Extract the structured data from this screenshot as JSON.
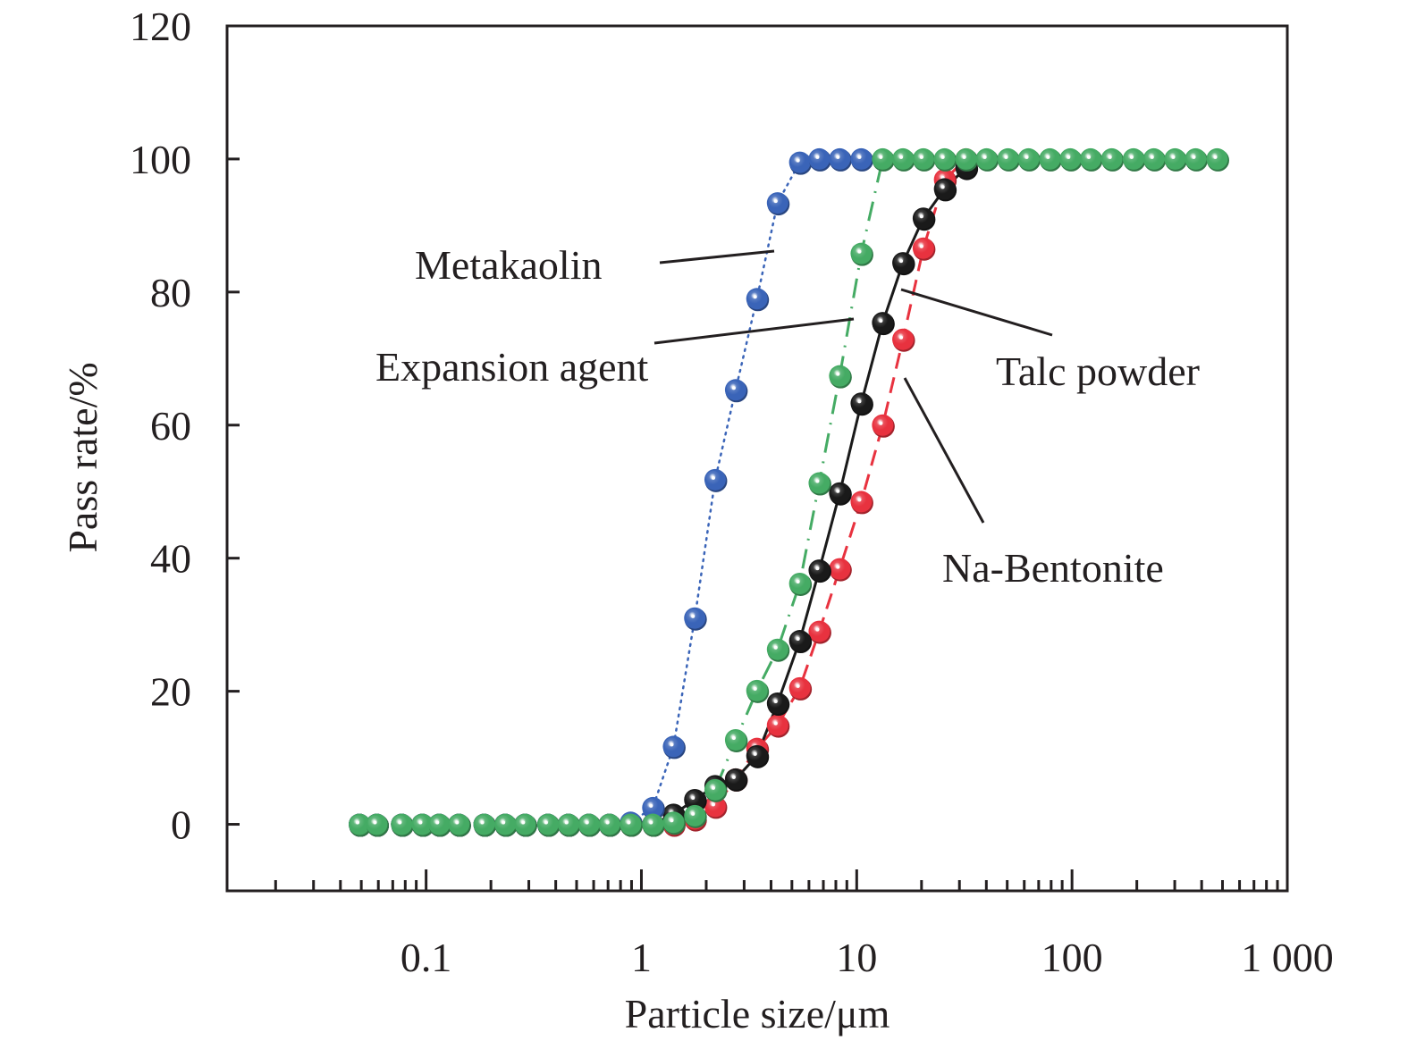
{
  "chart_data": {
    "type": "scatter",
    "title": "",
    "xlabel": "Particle size/μm",
    "ylabel": "Pass rate/%",
    "xscale": "log",
    "xlim": [
      0.0119,
      1000
    ],
    "ylim": [
      -10,
      120
    ],
    "grid": false,
    "legend": "none (inline annotations)",
    "x_ticks": [
      {
        "value": 0.1,
        "label": "0.1"
      },
      {
        "value": 1,
        "label": "1"
      },
      {
        "value": 10,
        "label": "10"
      },
      {
        "value": 100,
        "label": "100"
      },
      {
        "value": 1000,
        "label": "1 000"
      }
    ],
    "y_ticks": [
      {
        "value": 0,
        "label": "0"
      },
      {
        "value": 20,
        "label": "20"
      },
      {
        "value": 40,
        "label": "40"
      },
      {
        "value": 60,
        "label": "60"
      },
      {
        "value": 80,
        "label": "80"
      },
      {
        "value": 100,
        "label": "100"
      },
      {
        "value": 120,
        "label": "120"
      }
    ],
    "series": [
      {
        "name": "Na-Bentonite",
        "color": "#e8323f",
        "line": "dashed",
        "x": [
          0.049,
          0.059,
          0.077,
          0.096,
          0.115,
          0.142,
          0.186,
          0.233,
          0.288,
          0.368,
          0.458,
          0.57,
          0.71,
          0.891,
          1.13,
          1.41,
          1.77,
          2.2,
          2.74,
          3.44,
          4.29,
          5.44,
          6.7,
          8.34,
          10.5,
          13.2,
          16.4,
          20.4,
          25.6,
          32.2
        ],
        "y": [
          0,
          0,
          0,
          0,
          0,
          0,
          0,
          0,
          0,
          0,
          0,
          0,
          0,
          0,
          0,
          0,
          0.8,
          2.7,
          6.8,
          11.4,
          14.9,
          20.5,
          29.0,
          38.4,
          48.5,
          60.0,
          72.9,
          86.6,
          96.9,
          100
        ]
      },
      {
        "name": "Talc powder",
        "color": "#1a1a1a",
        "line": "solid",
        "x": [
          0.049,
          0.059,
          0.077,
          0.096,
          0.115,
          0.142,
          0.186,
          0.233,
          0.288,
          0.368,
          0.458,
          0.57,
          0.71,
          0.891,
          1.13,
          1.41,
          1.77,
          2.2,
          2.74,
          3.44,
          4.29,
          5.44,
          6.7,
          8.34,
          10.5,
          13.2,
          16.4,
          20.4,
          25.6,
          32.2
        ],
        "y": [
          0,
          0,
          0,
          0,
          0,
          0,
          0,
          0,
          0,
          0,
          0,
          0,
          0,
          0,
          0,
          1.5,
          3.7,
          5.8,
          6.8,
          10.3,
          18.2,
          27.6,
          38.2,
          49.8,
          63.3,
          75.4,
          84.4,
          91.1,
          95.5,
          98.7
        ]
      },
      {
        "name": "Metakaolin",
        "color": "#3a64b8",
        "line": "dotted",
        "x": [
          0.049,
          0.059,
          0.077,
          0.096,
          0.115,
          0.142,
          0.186,
          0.233,
          0.288,
          0.368,
          0.458,
          0.57,
          0.71,
          0.891,
          1.13,
          1.41,
          1.77,
          2.2,
          2.74,
          3.44,
          4.29,
          5.44,
          6.7,
          8.34,
          10.5
        ],
        "y": [
          0,
          0,
          0,
          0,
          0,
          0,
          0,
          0,
          0,
          0,
          0,
          0,
          0,
          0.3,
          2.5,
          11.7,
          31.0,
          51.8,
          65.3,
          79.0,
          93.4,
          99.5,
          100,
          100,
          100
        ]
      },
      {
        "name": "Expansion agent",
        "color": "#45ab64",
        "line": "dash-dot",
        "x": [
          0.049,
          0.059,
          0.077,
          0.096,
          0.115,
          0.142,
          0.186,
          0.233,
          0.288,
          0.368,
          0.458,
          0.57,
          0.71,
          0.891,
          1.13,
          1.41,
          1.77,
          2.2,
          2.74,
          3.44,
          4.29,
          5.44,
          6.7,
          8.34,
          10.5,
          13.2,
          16.4,
          20.4,
          25.6,
          32.2,
          40.1,
          50.4,
          62.8,
          78.9,
          98.2,
          122,
          153,
          193,
          240,
          301,
          375,
          472
        ],
        "y": [
          0,
          0,
          0,
          0,
          0,
          0,
          0,
          0,
          0,
          0,
          0,
          0,
          0,
          0,
          0,
          0.3,
          1.3,
          5.2,
          12.7,
          20.1,
          26.3,
          36.2,
          51.3,
          67.4,
          85.8,
          100,
          100,
          100,
          100,
          100,
          100,
          100,
          100,
          100,
          100,
          100,
          100,
          100,
          100,
          100,
          100,
          100
        ]
      }
    ],
    "annotations": [
      {
        "text": "Metakaolin",
        "series": "Metakaolin"
      },
      {
        "text": "Expansion agent",
        "series": "Expansion agent"
      },
      {
        "text": "Talc powder",
        "series": "Talc powder"
      },
      {
        "text": "Na-Bentonite",
        "series": "Na-Bentonite"
      }
    ]
  }
}
